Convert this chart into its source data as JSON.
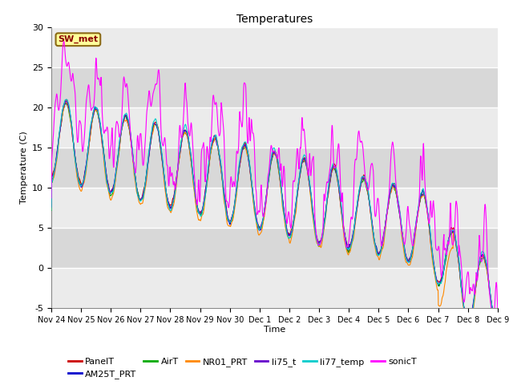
{
  "title": "Temperatures",
  "xlabel": "Time",
  "ylabel": "Temperature (C)",
  "ylim": [
    -5,
    30
  ],
  "yticks": [
    -5,
    0,
    5,
    10,
    15,
    20,
    25,
    30
  ],
  "fig_bg_color": "#ffffff",
  "plot_bg_color": "#d8d8d8",
  "annotation_text": "SW_met",
  "annotation_bg": "#ffff99",
  "annotation_border": "#8B6914",
  "annotation_text_color": "#8B0000",
  "series_colors": {
    "PanelT": "#cc0000",
    "AM25T_PRT": "#0000cc",
    "AirT": "#00aa00",
    "NR01_PRT": "#ff8800",
    "li75_t": "#6600cc",
    "li77_temp": "#00cccc",
    "sonicT": "#ff00ff"
  },
  "x_tick_labels": [
    "Nov 24",
    "Nov 25",
    "Nov 26",
    "Nov 27",
    "Nov 28",
    "Nov 29",
    "Nov 30",
    "Dec 1",
    "Dec 2",
    "Dec 3",
    "Dec 4",
    "Dec 5",
    "Dec 6",
    "Dec 7",
    "Dec 8",
    "Dec 9"
  ],
  "n_points": 1440,
  "days": 15
}
